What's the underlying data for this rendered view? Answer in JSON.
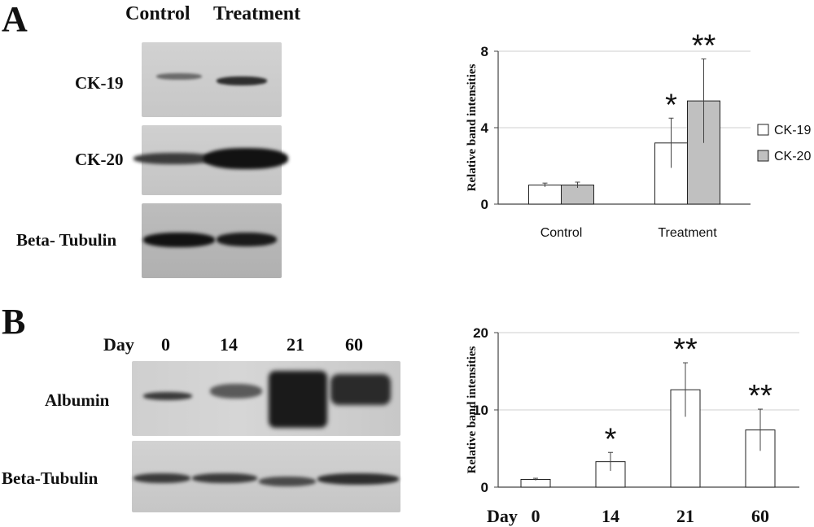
{
  "panel_a": {
    "letter": "A",
    "columns": [
      "Control",
      "Treatment"
    ],
    "blot_rows": [
      "CK-19",
      "CK-20",
      "Beta- Tubulin"
    ]
  },
  "panel_b": {
    "letter": "B",
    "day_label": "Day",
    "days": [
      "0",
      "14",
      "21",
      "60"
    ],
    "blot_rows": [
      "Albumin",
      "Beta-Tubulin"
    ]
  },
  "chart_data": [
    {
      "type": "bar",
      "ylabel": "Relative band intensities",
      "xlabel": "",
      "categories": [
        "Control",
        "Treatment"
      ],
      "ylim": [
        0,
        8
      ],
      "yticks": [
        0,
        4,
        8
      ],
      "grid": true,
      "legend_placement": "right",
      "series": [
        {
          "name": "CK-19",
          "color": "#ffffff",
          "values": [
            1.0,
            3.2
          ],
          "errors": [
            0.1,
            1.3
          ]
        },
        {
          "name": "CK-20",
          "color": "#c0c0c0",
          "values": [
            1.0,
            5.4
          ],
          "errors": [
            0.15,
            2.2
          ]
        }
      ],
      "significance": [
        {
          "category": "Treatment",
          "series": "CK-19",
          "mark": "*"
        },
        {
          "category": "Treatment",
          "series": "CK-20",
          "mark": "**"
        }
      ]
    },
    {
      "type": "bar",
      "ylabel": "Relative band intensities",
      "xlabel": "Day",
      "categories": [
        "0",
        "14",
        "21",
        "60"
      ],
      "ylim": [
        0,
        20
      ],
      "yticks": [
        0,
        10,
        20
      ],
      "grid": true,
      "series": [
        {
          "name": "",
          "color": "#ffffff",
          "values": [
            1.0,
            3.3,
            12.6,
            7.4
          ],
          "errors": [
            0.15,
            1.2,
            3.5,
            2.7
          ]
        }
      ],
      "significance": [
        {
          "category": "14",
          "mark": "*"
        },
        {
          "category": "21",
          "mark": "**"
        },
        {
          "category": "60",
          "mark": "**"
        }
      ]
    }
  ]
}
